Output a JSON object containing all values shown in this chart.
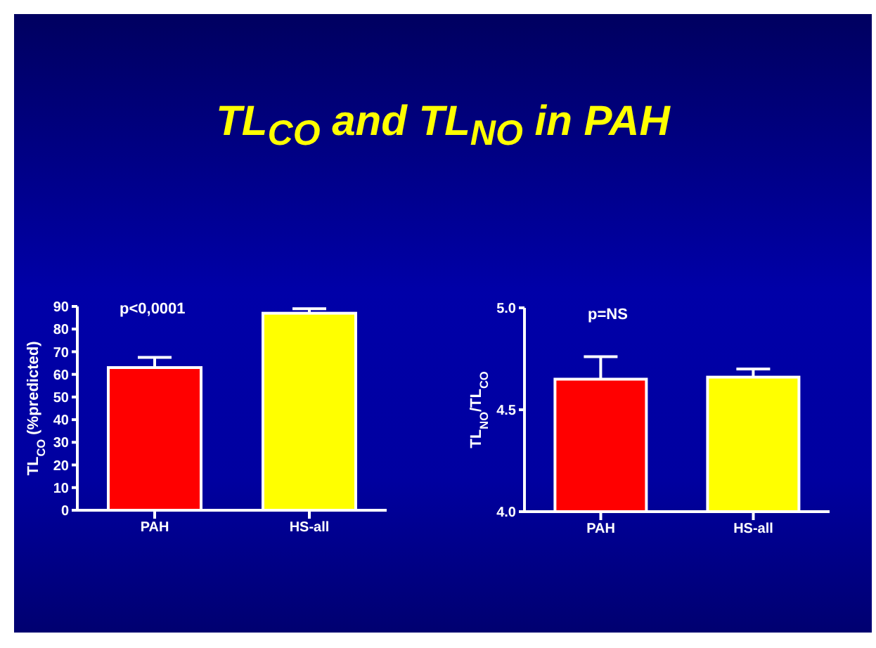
{
  "chart_data": [
    {
      "type": "bar",
      "title": "TL$_{CO}$ and TL$_{NO}$ in PAH",
      "ylabel": "TL$_{CO}$ (%predicted)",
      "categories": [
        "PAH",
        "HS-all"
      ],
      "values": [
        63,
        87
      ],
      "colors": [
        "#ff0000",
        "#ffff00"
      ],
      "errors": [
        [
          63,
          67.5
        ],
        [
          87,
          89
        ]
      ],
      "ylim": [
        0,
        90
      ],
      "yticks": [
        0,
        10,
        20,
        30,
        40,
        50,
        60,
        70,
        80,
        90
      ],
      "annotations": [
        "p<0,0001"
      ]
    },
    {
      "type": "bar",
      "ylabel": "TL$_{NO}$/TL$_{CO}$",
      "categories": [
        "PAH",
        "HS-all"
      ],
      "values": [
        4.65,
        4.66
      ],
      "colors": [
        "#ff0000",
        "#ffff00"
      ],
      "errors": [
        [
          4.65,
          4.76
        ],
        [
          4.66,
          4.7
        ]
      ],
      "ylim": [
        4,
        5
      ],
      "yticks": [
        {
          "value": 4,
          "label": "4.0"
        },
        {
          "value": 4.5,
          "label": "4.5"
        },
        {
          "value": 5,
          "label": "5.0"
        }
      ],
      "annotations": [
        "p=NS"
      ]
    }
  ]
}
